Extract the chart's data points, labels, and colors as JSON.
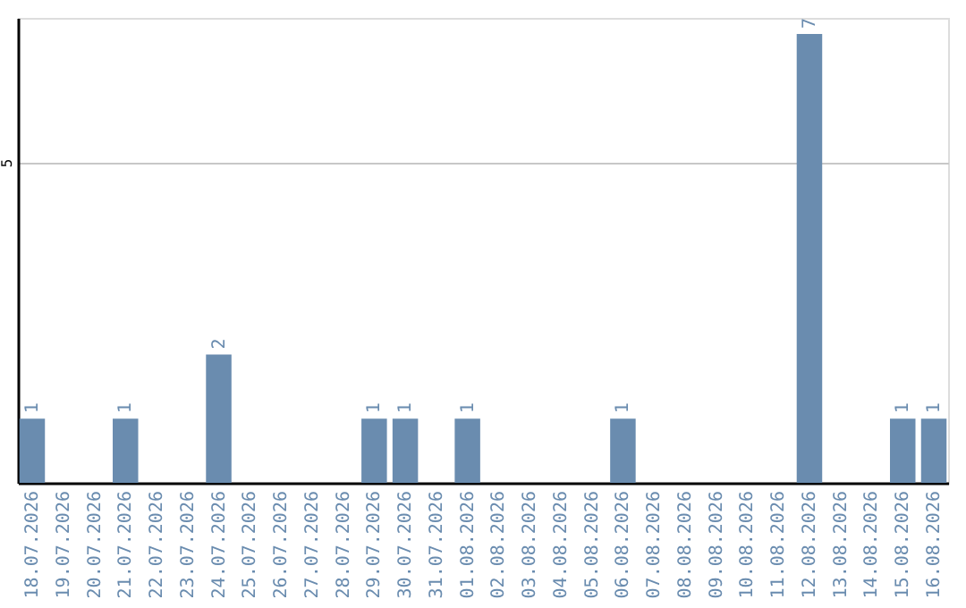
{
  "chart_data": {
    "type": "bar",
    "categories": [
      "18.07.2026",
      "19.07.2026",
      "20.07.2026",
      "21.07.2026",
      "22.07.2026",
      "23.07.2026",
      "24.07.2026",
      "25.07.2026",
      "26.07.2026",
      "27.07.2026",
      "28.07.2026",
      "29.07.2026",
      "30.07.2026",
      "31.07.2026",
      "01.08.2026",
      "02.08.2026",
      "03.08.2026",
      "04.08.2026",
      "05.08.2026",
      "06.08.2026",
      "07.08.2026",
      "08.08.2026",
      "09.08.2026",
      "10.08.2026",
      "11.08.2026",
      "12.08.2026",
      "13.08.2026",
      "14.08.2026",
      "15.08.2026",
      "16.08.2026"
    ],
    "values": [
      1,
      0,
      0,
      1,
      0,
      0,
      2,
      0,
      0,
      0,
      0,
      1,
      1,
      0,
      1,
      0,
      0,
      0,
      0,
      1,
      0,
      0,
      0,
      0,
      0,
      7,
      0,
      0,
      1,
      1
    ],
    "value_labels": [
      "1",
      null,
      null,
      "1",
      null,
      null,
      "2",
      null,
      null,
      null,
      null,
      "1",
      "1",
      null,
      "1",
      null,
      null,
      null,
      null,
      "1",
      null,
      null,
      null,
      null,
      null,
      "7",
      null,
      null,
      "1",
      "1"
    ],
    "color": "#6a8caf",
    "ylim": [
      0,
      7.25
    ],
    "yticks": [
      5
    ],
    "grid": "y"
  }
}
